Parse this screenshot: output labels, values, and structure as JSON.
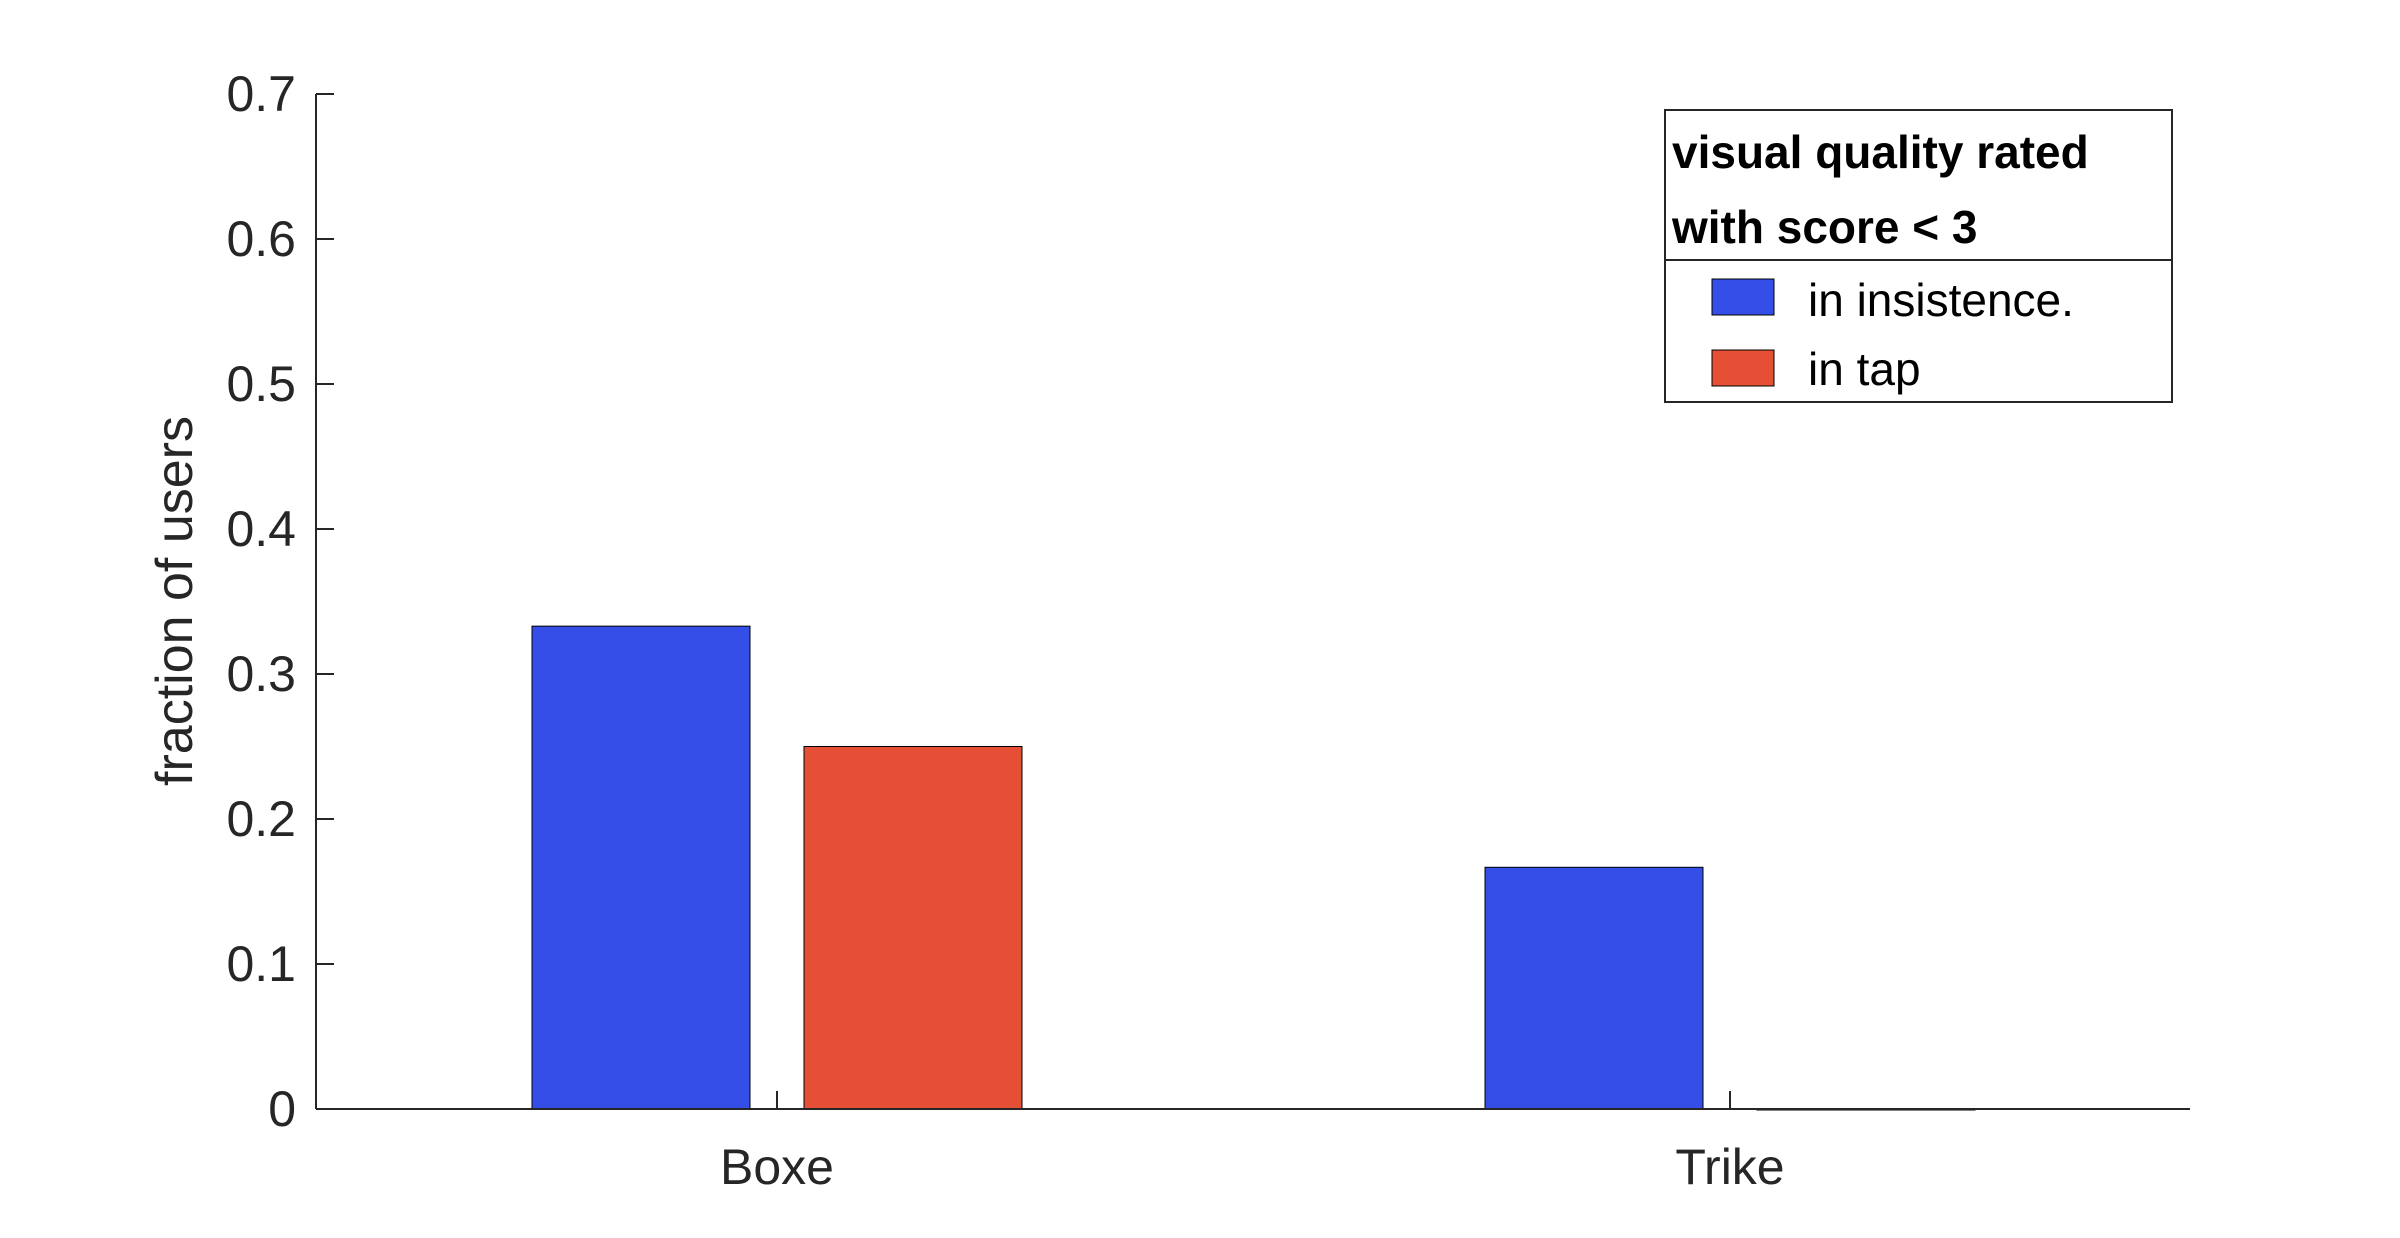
{
  "chart_data": {
    "type": "bar",
    "categories": [
      "Boxe",
      "Trike"
    ],
    "series": [
      {
        "name": "in insistence.",
        "values": [
          0.333,
          0.1667
        ],
        "color": "#344ee7"
      },
      {
        "name": "in tap",
        "values": [
          0.25,
          0.0
        ],
        "color": "#e54f35"
      }
    ],
    "ylabel": "fraction of users",
    "xlabel": "",
    "ylim": [
      0,
      0.7
    ],
    "yticks": [
      "0",
      "0.1",
      "0.2",
      "0.3",
      "0.4",
      "0.5",
      "0.6",
      "0.7"
    ],
    "grid": false,
    "legend": {
      "title_lines": [
        "visual quality rated",
        "with score < 3"
      ],
      "placement": "top-right"
    }
  }
}
